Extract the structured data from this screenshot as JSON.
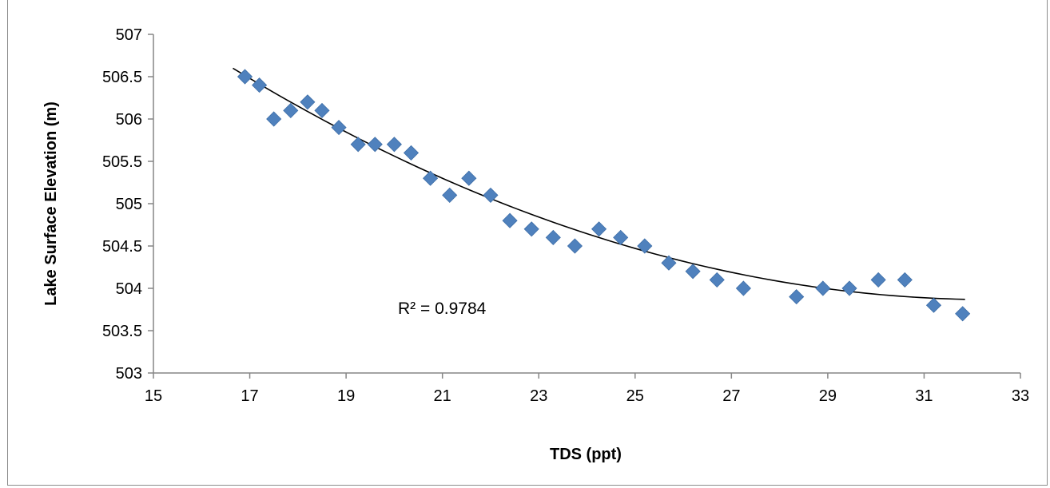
{
  "chart_data": {
    "type": "scatter",
    "title": "",
    "xlabel": "TDS (ppt)",
    "ylabel": "Lake Surface Elevation (m)",
    "xlim": [
      15,
      33
    ],
    "ylim": [
      503,
      507
    ],
    "x_ticks": [
      15,
      17,
      19,
      21,
      23,
      25,
      27,
      29,
      31,
      33
    ],
    "y_ticks": [
      503,
      503.5,
      504,
      504.5,
      505,
      505.5,
      506,
      506.5,
      507
    ],
    "x_tick_labels": [
      "15",
      "17",
      "19",
      "21",
      "23",
      "25",
      "27",
      "29",
      "31",
      "33"
    ],
    "y_tick_labels": [
      "503",
      "503.5",
      "504",
      "504.5",
      "505",
      "505.5",
      "506",
      "506.5",
      "507"
    ],
    "grid": false,
    "legend": "none",
    "marker": "diamond",
    "marker_color": "#4f81bd",
    "trendline_color": "#000000",
    "series": [
      {
        "points": [
          [
            16.9,
            506.5
          ],
          [
            17.2,
            506.4
          ],
          [
            17.5,
            506.0
          ],
          [
            17.85,
            506.1
          ],
          [
            18.2,
            506.2
          ],
          [
            18.5,
            506.1
          ],
          [
            18.85,
            505.9
          ],
          [
            19.25,
            505.7
          ],
          [
            19.6,
            505.7
          ],
          [
            20.0,
            505.7
          ],
          [
            20.35,
            505.6
          ],
          [
            20.75,
            505.3
          ],
          [
            21.15,
            505.1
          ],
          [
            21.55,
            505.3
          ],
          [
            22.0,
            505.1
          ],
          [
            22.4,
            504.8
          ],
          [
            22.85,
            504.7
          ],
          [
            23.3,
            504.6
          ],
          [
            23.75,
            504.5
          ],
          [
            24.25,
            504.7
          ],
          [
            24.7,
            504.6
          ],
          [
            25.2,
            504.5
          ],
          [
            25.7,
            504.3
          ],
          [
            26.2,
            504.2
          ],
          [
            26.7,
            504.1
          ],
          [
            27.25,
            504.0
          ],
          [
            28.35,
            503.9
          ],
          [
            28.9,
            504.0
          ],
          [
            29.45,
            504.0
          ],
          [
            30.05,
            504.1
          ],
          [
            30.6,
            504.1
          ],
          [
            31.2,
            503.8
          ],
          [
            31.8,
            503.7
          ]
        ]
      }
    ],
    "trendline": {
      "type": "polynomial",
      "x_range": [
        16.65,
        31.85
      ],
      "points": [
        [
          16.65,
          506.6
        ],
        [
          24.25,
          504.6
        ],
        [
          31.85,
          503.87
        ]
      ]
    },
    "annotations": [
      {
        "text": "R² = 0.9784"
      }
    ]
  }
}
